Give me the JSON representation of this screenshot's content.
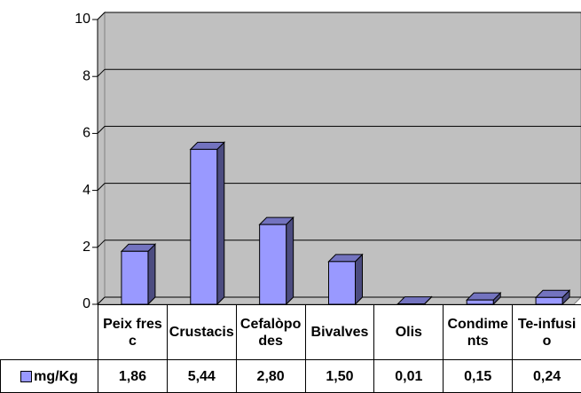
{
  "chart_data": {
    "type": "bar3d",
    "categories": [
      "Peix fresc",
      "Crustacis",
      "Cefalòpodes",
      "Bivalves",
      "Olis",
      "Condiments",
      "Te-infusio"
    ],
    "series": [
      {
        "name": "mg/Kg",
        "color": "#9999ff",
        "values": [
          1.86,
          5.44,
          2.8,
          1.5,
          0.01,
          0.15,
          0.24
        ],
        "value_labels": [
          "1,86",
          "5,44",
          "2,80",
          "1,50",
          "0,01",
          "0,15",
          "0,24"
        ]
      }
    ],
    "ylim": [
      0,
      10
    ],
    "yticks": [
      0,
      2,
      4,
      6,
      8,
      10
    ],
    "grid": true,
    "legend": "data-table"
  }
}
